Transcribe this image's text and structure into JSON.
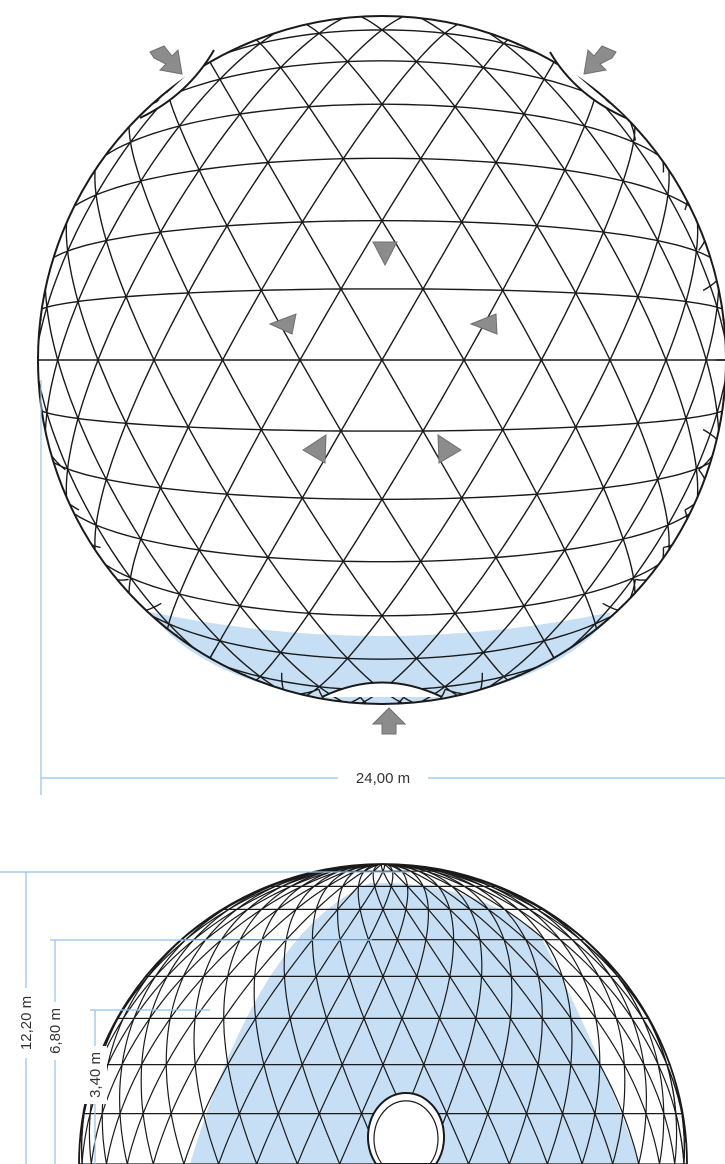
{
  "plan_view": {
    "width_label": "24,00 m"
  },
  "elevation_view": {
    "height_labels": {
      "total": "12,20 m",
      "mid": "6,80 m",
      "low": "3,40 m"
    }
  },
  "colors": {
    "structure_line": "#1a1a1a",
    "floor_fill": "#c6dff5",
    "dimension_line": "#8fc2ee",
    "arrow_fill": "#8c8c8c"
  }
}
